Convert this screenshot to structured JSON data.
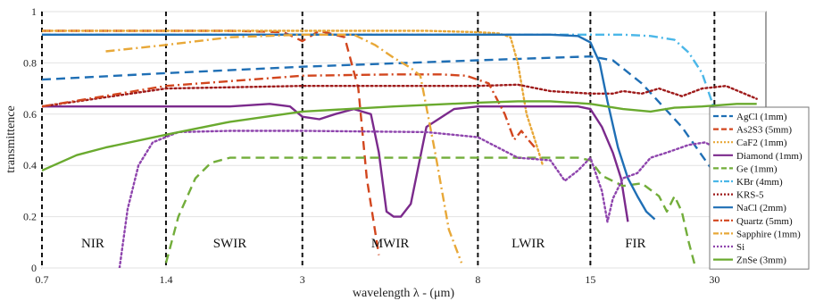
{
  "chart_data": {
    "type": "line",
    "title": "",
    "xlabel": "wavelength λ - (μm)",
    "ylabel": "transmittence",
    "x_scale": "log",
    "xlim": [
      0.7,
      40
    ],
    "ylim": [
      0,
      1
    ],
    "x_ticks": [
      {
        "value": 0.7,
        "label": "0.7"
      },
      {
        "value": 1.4,
        "label": "1.4"
      },
      {
        "value": 3,
        "label": "3"
      },
      {
        "value": 8,
        "label": "8"
      },
      {
        "value": 15,
        "label": "15"
      },
      {
        "value": 30,
        "label": "30"
      }
    ],
    "y_ticks": [
      {
        "value": 0,
        "label": "0"
      },
      {
        "value": 0.2,
        "label": "0.2"
      },
      {
        "value": 0.4,
        "label": "0.4"
      },
      {
        "value": 0.6,
        "label": "0.6"
      },
      {
        "value": 0.8,
        "label": "0.8"
      },
      {
        "value": 1,
        "label": "1"
      }
    ],
    "grid": true,
    "legend_position": "right",
    "band_boundaries": [
      1.4,
      3,
      8,
      15,
      30
    ],
    "bands": [
      {
        "label": "NIR",
        "x": 0.93
      },
      {
        "label": "SWIR",
        "x": 2.0
      },
      {
        "label": "MWIR",
        "x": 4.9
      },
      {
        "label": "LWIR",
        "x": 10.6
      },
      {
        "label": "FIR",
        "x": 19.3
      }
    ],
    "series": [
      {
        "name": "AgCl (1mm)",
        "color": "#1f6fb5",
        "dash": "dash",
        "x": [
          0.7,
          1.4,
          3,
          8,
          12,
          15,
          17,
          20,
          25,
          30
        ],
        "y": [
          0.735,
          0.76,
          0.785,
          0.81,
          0.82,
          0.825,
          0.81,
          0.72,
          0.55,
          0.37
        ]
      },
      {
        "name": "As2S3 (5mm)",
        "color": "#d2461e",
        "dash": "dash",
        "x": [
          0.7,
          1.4,
          2,
          2.7,
          3,
          3.3,
          3.8,
          4.1,
          4.3,
          4.6
        ],
        "y": [
          0.925,
          0.925,
          0.925,
          0.92,
          0.885,
          0.925,
          0.9,
          0.7,
          0.35,
          0.05
        ]
      },
      {
        "name": "CaF2 (1mm)",
        "color": "#e8a838",
        "dash": "dot",
        "x": [
          0.7,
          1.4,
          3,
          6,
          8,
          9,
          9.6,
          10,
          10.5,
          11,
          11.5
        ],
        "y": [
          0.925,
          0.925,
          0.925,
          0.925,
          0.92,
          0.915,
          0.9,
          0.8,
          0.6,
          0.5,
          0.4
        ]
      },
      {
        "name": "Diamond (1mm)",
        "color": "#7b2a8c",
        "dash": "solid",
        "x": [
          0.7,
          1.4,
          2,
          2.5,
          2.8,
          3,
          3.3,
          3.6,
          4,
          4.4,
          4.6,
          4.8,
          5.0,
          5.2,
          5.5,
          6,
          7,
          8,
          10,
          12,
          14,
          15,
          16,
          17,
          17.8,
          18.5
        ],
        "y": [
          0.63,
          0.63,
          0.63,
          0.64,
          0.63,
          0.59,
          0.58,
          0.6,
          0.62,
          0.6,
          0.45,
          0.22,
          0.2,
          0.2,
          0.25,
          0.55,
          0.62,
          0.63,
          0.63,
          0.63,
          0.63,
          0.62,
          0.55,
          0.45,
          0.35,
          0.18
        ]
      },
      {
        "name": "Ge  (1mm)",
        "color": "#72ad3a",
        "dash": "dash",
        "x": [
          1.4,
          1.5,
          1.65,
          1.8,
          2,
          3,
          5,
          8,
          12,
          14,
          15,
          16,
          18,
          20,
          22,
          23,
          24,
          25,
          26,
          27
        ],
        "y": [
          0.02,
          0.2,
          0.35,
          0.41,
          0.43,
          0.43,
          0.43,
          0.43,
          0.43,
          0.43,
          0.42,
          0.36,
          0.32,
          0.33,
          0.28,
          0.22,
          0.28,
          0.22,
          0.1,
          0.0
        ]
      },
      {
        "name": "KBr (4mm)",
        "color": "#4bb7e8",
        "dash": "dashdot",
        "x": [
          0.7,
          1.4,
          3,
          8,
          15,
          18,
          21,
          24,
          26,
          28,
          30
        ],
        "y": [
          0.91,
          0.91,
          0.91,
          0.91,
          0.91,
          0.91,
          0.905,
          0.89,
          0.84,
          0.76,
          0.62
        ]
      },
      {
        "name": "KRS-5",
        "color": "#9e1a1a",
        "dash": "dot",
        "x": [
          0.7,
          1.4,
          3,
          6,
          8,
          10,
          12,
          15,
          17,
          18,
          20,
          22,
          25,
          28,
          32,
          38
        ],
        "y": [
          0.63,
          0.7,
          0.71,
          0.71,
          0.71,
          0.715,
          0.69,
          0.68,
          0.68,
          0.69,
          0.68,
          0.7,
          0.67,
          0.7,
          0.71,
          0.66
        ]
      },
      {
        "name": "NaCl (2mm)",
        "color": "#1f6fb5",
        "dash": "solid",
        "x": [
          0.7,
          1.4,
          3,
          8,
          12,
          14,
          15,
          15.8,
          16.5,
          17.5,
          18.5,
          19.5,
          20.5,
          21.5
        ],
        "y": [
          0.91,
          0.91,
          0.91,
          0.91,
          0.91,
          0.905,
          0.88,
          0.8,
          0.65,
          0.47,
          0.35,
          0.28,
          0.22,
          0.19
        ]
      },
      {
        "name": "Quartz (5mm)",
        "color": "#d2461e",
        "dash": "dashdot",
        "x": [
          0.7,
          1.4,
          3,
          5,
          6.5,
          7.5,
          8.5,
          9.3,
          9.8,
          10.2,
          10.6,
          11
        ],
        "y": [
          0.63,
          0.71,
          0.75,
          0.755,
          0.755,
          0.75,
          0.72,
          0.6,
          0.5,
          0.535,
          0.5,
          0.47
        ]
      },
      {
        "name": "Sapphire (1mm)",
        "color": "#e8a838",
        "dash": "dashdot",
        "x": [
          1.0,
          1.4,
          2,
          3,
          4,
          4.5,
          5,
          5.5,
          5.8,
          6.3,
          6.8,
          7.3
        ],
        "y": [
          0.845,
          0.87,
          0.9,
          0.91,
          0.91,
          0.87,
          0.82,
          0.78,
          0.75,
          0.45,
          0.15,
          0.02
        ]
      },
      {
        "name": "Si",
        "color": "#8e44ad",
        "dash": "dot",
        "x": [
          1.08,
          1.13,
          1.2,
          1.3,
          1.5,
          2,
          3,
          6,
          8,
          10,
          12,
          13,
          14,
          15,
          16,
          16.5,
          17,
          18,
          19.5,
          21,
          23,
          26,
          28.5,
          30
        ],
        "y": [
          0.0,
          0.23,
          0.4,
          0.49,
          0.53,
          0.535,
          0.535,
          0.53,
          0.51,
          0.43,
          0.42,
          0.34,
          0.38,
          0.43,
          0.3,
          0.18,
          0.27,
          0.35,
          0.37,
          0.43,
          0.45,
          0.48,
          0.49,
          0.47
        ]
      },
      {
        "name": "ZnSe (3mm)",
        "color": "#6aaa2f",
        "dash": "solid",
        "x": [
          0.7,
          0.85,
          1.0,
          1.4,
          2,
          3,
          5,
          8,
          10,
          12,
          15,
          18,
          21,
          24,
          28,
          34,
          38
        ],
        "y": [
          0.38,
          0.44,
          0.47,
          0.52,
          0.57,
          0.61,
          0.63,
          0.645,
          0.65,
          0.65,
          0.64,
          0.62,
          0.61,
          0.625,
          0.63,
          0.64,
          0.64
        ]
      }
    ]
  }
}
